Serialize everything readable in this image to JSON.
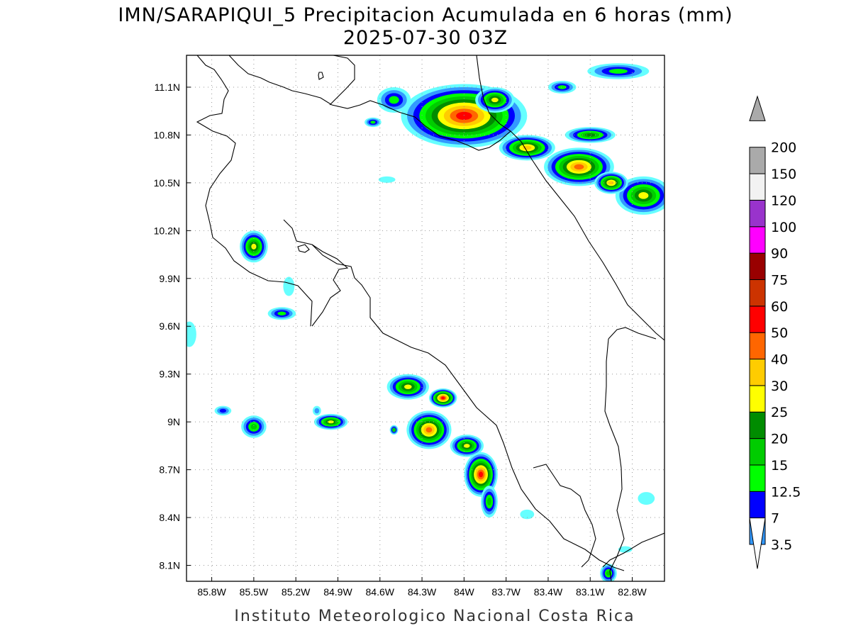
{
  "title": {
    "line1": "IMN/SARAPIQUI_5 Precipitacion Acumulada en 6 horas (mm)",
    "line2": "2025-07-30 03Z"
  },
  "credit": "Instituto Meteorologico Nacional Costa Rica",
  "map": {
    "lon_range": [
      -85.98,
      -82.57
    ],
    "lat_range": [
      8.0,
      11.3
    ],
    "lon_ticks": [
      {
        "value": -85.8,
        "label": "85.8W"
      },
      {
        "value": -85.5,
        "label": "85.5W"
      },
      {
        "value": -85.2,
        "label": "85.2W"
      },
      {
        "value": -84.9,
        "label": "84.9W"
      },
      {
        "value": -84.6,
        "label": "84.6W"
      },
      {
        "value": -84.3,
        "label": "84.3W"
      },
      {
        "value": -84.0,
        "label": "84W"
      },
      {
        "value": -83.7,
        "label": "83.7W"
      },
      {
        "value": -83.4,
        "label": "83.4W"
      },
      {
        "value": -83.1,
        "label": "83.1W"
      },
      {
        "value": -82.8,
        "label": "82.8W"
      }
    ],
    "lat_ticks": [
      {
        "value": 11.1,
        "label": "11.1N"
      },
      {
        "value": 10.8,
        "label": "10.8N"
      },
      {
        "value": 10.5,
        "label": "10.5N"
      },
      {
        "value": 10.2,
        "label": "10.2N"
      },
      {
        "value": 9.9,
        "label": "9.9N"
      },
      {
        "value": 9.6,
        "label": "9.6N"
      },
      {
        "value": 9.3,
        "label": "9.3N"
      },
      {
        "value": 9.0,
        "label": "9N"
      },
      {
        "value": 8.7,
        "label": "8.7N"
      },
      {
        "value": 8.4,
        "label": "8.4N"
      },
      {
        "value": 8.1,
        "label": "8.1N"
      }
    ],
    "grid": "dotted"
  },
  "colorbar": {
    "levels": [
      {
        "label": "3.5",
        "color": "#66ffff"
      },
      {
        "label": "7",
        "color": "#3399ff"
      },
      {
        "label": "12.5",
        "color": "#0000ff"
      },
      {
        "label": "15",
        "color": "#00ff00"
      },
      {
        "label": "20",
        "color": "#00cc00"
      },
      {
        "label": "25",
        "color": "#008c00"
      },
      {
        "label": "30",
        "color": "#ffff00"
      },
      {
        "label": "40",
        "color": "#ffcc00"
      },
      {
        "label": "50",
        "color": "#ff6600"
      },
      {
        "label": "60",
        "color": "#ff0000"
      },
      {
        "label": "75",
        "color": "#cc3300"
      },
      {
        "label": "90",
        "color": "#990000"
      },
      {
        "label": "100",
        "color": "#ff00ff"
      },
      {
        "label": "120",
        "color": "#9933cc"
      },
      {
        "label": "150",
        "color": "#f2f2f2"
      },
      {
        "label": "200",
        "color": "#aaaaaa"
      }
    ]
  },
  "precip_cells": [
    {
      "lon": -84.0,
      "lat": 10.92,
      "level": 9,
      "rlon": 0.45,
      "rlat": 0.2
    },
    {
      "lon": -83.78,
      "lat": 11.02,
      "level": 6,
      "rlon": 0.14,
      "rlat": 0.08
    },
    {
      "lon": -84.5,
      "lat": 11.02,
      "level": 3,
      "rlon": 0.12,
      "rlat": 0.08
    },
    {
      "lon": -83.18,
      "lat": 10.6,
      "level": 8,
      "rlon": 0.25,
      "rlat": 0.12
    },
    {
      "lon": -83.55,
      "lat": 10.72,
      "level": 7,
      "rlon": 0.2,
      "rlat": 0.08
    },
    {
      "lon": -83.1,
      "lat": 10.8,
      "level": 5,
      "rlon": 0.18,
      "rlat": 0.05
    },
    {
      "lon": -82.72,
      "lat": 10.42,
      "level": 6,
      "rlon": 0.2,
      "rlat": 0.12
    },
    {
      "lon": -82.95,
      "lat": 10.5,
      "level": 7,
      "rlon": 0.12,
      "rlat": 0.07
    },
    {
      "lon": -82.9,
      "lat": 11.2,
      "level": 3,
      "rlon": 0.22,
      "rlat": 0.05
    },
    {
      "lon": -83.3,
      "lat": 11.1,
      "level": 3,
      "rlon": 0.1,
      "rlat": 0.04
    },
    {
      "lon": -84.55,
      "lat": 10.52,
      "level": 0,
      "rlon": 0.06,
      "rlat": 0.02
    },
    {
      "lon": -84.65,
      "lat": 10.88,
      "level": 3,
      "rlon": 0.06,
      "rlat": 0.03
    },
    {
      "lon": -85.5,
      "lat": 10.1,
      "level": 6,
      "rlon": 0.1,
      "rlat": 0.1
    },
    {
      "lon": -85.3,
      "lat": 9.68,
      "level": 3,
      "rlon": 0.1,
      "rlat": 0.04
    },
    {
      "lon": -85.25,
      "lat": 9.85,
      "level": 0,
      "rlon": 0.04,
      "rlat": 0.06
    },
    {
      "lon": -85.96,
      "lat": 9.55,
      "level": 0,
      "rlon": 0.05,
      "rlat": 0.08
    },
    {
      "lon": -84.15,
      "lat": 9.15,
      "level": 9,
      "rlon": 0.1,
      "rlat": 0.06
    },
    {
      "lon": -84.4,
      "lat": 9.22,
      "level": 6,
      "rlon": 0.15,
      "rlat": 0.08
    },
    {
      "lon": -84.25,
      "lat": 8.95,
      "level": 8,
      "rlon": 0.16,
      "rlat": 0.12
    },
    {
      "lon": -83.98,
      "lat": 8.85,
      "level": 6,
      "rlon": 0.12,
      "rlat": 0.07
    },
    {
      "lon": -83.88,
      "lat": 8.67,
      "level": 9,
      "rlon": 0.12,
      "rlat": 0.14
    },
    {
      "lon": -83.82,
      "lat": 8.5,
      "level": 4,
      "rlon": 0.06,
      "rlat": 0.1
    },
    {
      "lon": -84.95,
      "lat": 9.0,
      "level": 6,
      "rlon": 0.12,
      "rlat": 0.05
    },
    {
      "lon": -85.5,
      "lat": 8.97,
      "level": 4,
      "rlon": 0.09,
      "rlat": 0.07
    },
    {
      "lon": -85.72,
      "lat": 9.07,
      "level": 2,
      "rlon": 0.06,
      "rlat": 0.03
    },
    {
      "lon": -85.05,
      "lat": 9.07,
      "level": 1,
      "rlon": 0.03,
      "rlat": 0.03
    },
    {
      "lon": -84.5,
      "lat": 8.95,
      "level": 4,
      "rlon": 0.03,
      "rlat": 0.03
    },
    {
      "lon": -82.97,
      "lat": 8.05,
      "level": 4,
      "rlon": 0.06,
      "rlat": 0.06
    },
    {
      "lon": -83.55,
      "lat": 8.42,
      "level": 0,
      "rlon": 0.05,
      "rlat": 0.03
    },
    {
      "lon": -82.7,
      "lat": 8.52,
      "level": 0,
      "rlon": 0.06,
      "rlat": 0.04
    },
    {
      "lon": -82.85,
      "lat": 8.2,
      "level": 0,
      "rlon": 0.05,
      "rlat": 0.02
    }
  ]
}
